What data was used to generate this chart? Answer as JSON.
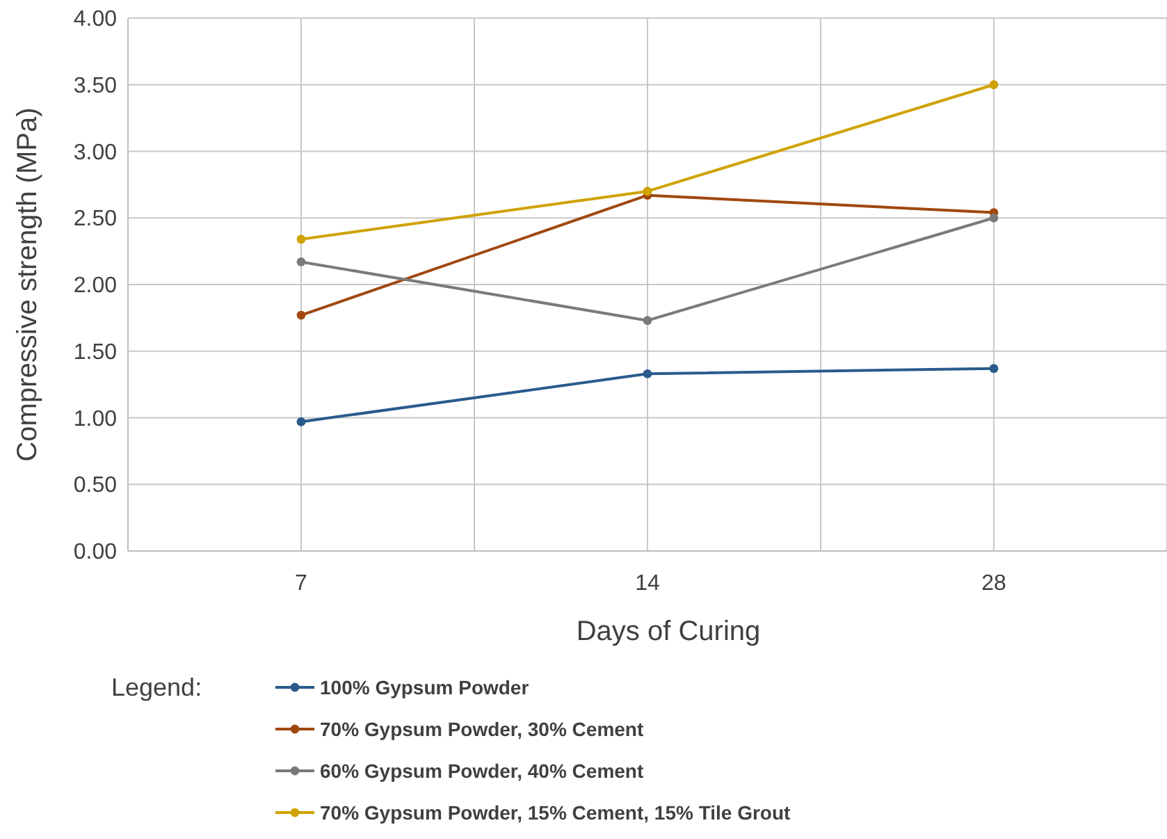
{
  "chart_data": {
    "type": "line",
    "xlabel": "Days of Curing",
    "ylabel": "Compressive strength (MPa)",
    "legend_title": "Legend:",
    "categories": [
      "7",
      "14",
      "28"
    ],
    "series": [
      {
        "name": "100% Gypsum Powder",
        "color": "#2a5b8c",
        "values": [
          0.97,
          1.33,
          1.37
        ]
      },
      {
        "name": "70% Gypsum Powder, 30% Cement",
        "color": "#a0480f",
        "values": [
          1.77,
          2.67,
          2.54
        ]
      },
      {
        "name": "60% Gypsum Powder, 40% Cement",
        "color": "#7a7a7a",
        "values": [
          2.17,
          1.73,
          2.5
        ]
      },
      {
        "name": "70% Gypsum Powder, 15% Cement, 15% Tile Grout",
        "color": "#cfa200",
        "values": [
          2.34,
          2.7,
          3.5
        ]
      }
    ],
    "ylim": [
      0,
      4
    ],
    "yticks": [
      {
        "value": 0,
        "label": "0.00"
      },
      {
        "value": 0.5,
        "label": "0.50"
      },
      {
        "value": 1,
        "label": "1.00"
      },
      {
        "value": 1.5,
        "label": "1.50"
      },
      {
        "value": 2,
        "label": "2.00"
      },
      {
        "value": 2.5,
        "label": "2.50"
      },
      {
        "value": 3,
        "label": "3.00"
      },
      {
        "value": 3.5,
        "label": "3.50"
      },
      {
        "value": 4,
        "label": "4.00"
      }
    ],
    "grid": true,
    "legend": "bottom",
    "marker": "circle",
    "line_style": "solid"
  }
}
